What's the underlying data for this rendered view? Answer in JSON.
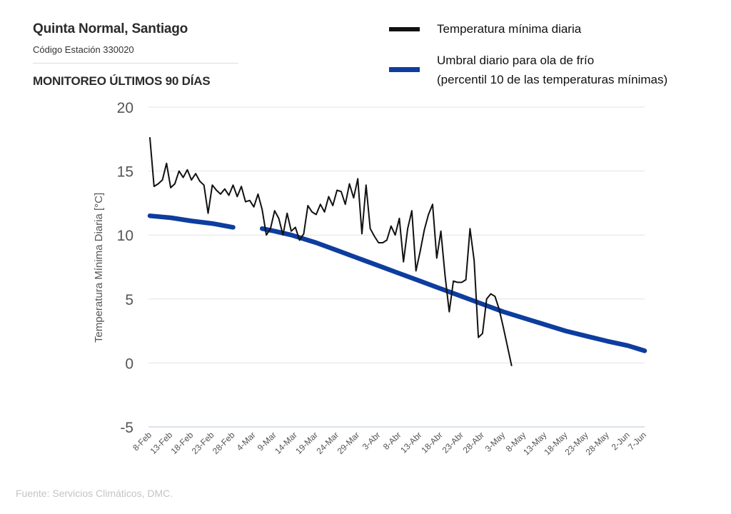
{
  "header": {
    "station_name": "Quinta Normal, Santiago",
    "station_code": "Código Estación 330020",
    "monitor_title": "MONITOREO ÚLTIMOS 90 DÍAS"
  },
  "legend": {
    "series1_label": "Temperatura mínima diaria",
    "series2_line1": "Umbral diario para ola de frío",
    "series2_line2": "(percentil 10 de las temperaturas mínimas)"
  },
  "source": "Fuente: Servicios Climáticos, DMC.",
  "colors": {
    "min_temp": "#111111",
    "threshold": "#0d3d9e",
    "grid": "#e3e3e3",
    "tick_text": "#555555"
  },
  "chart_data": {
    "type": "line",
    "title": "MONITOREO ÚLTIMOS 90 DÍAS",
    "xlabel": "",
    "ylabel": "Temperatura Mínima Diaria [°C]",
    "ylim": [
      -5,
      20
    ],
    "yticks": [
      20,
      15,
      10,
      5,
      0,
      -5
    ],
    "xlim": [
      0,
      119
    ],
    "xtick_days": [
      0,
      5,
      10,
      15,
      20,
      25,
      30,
      35,
      40,
      45,
      50,
      55,
      60,
      65,
      70,
      75,
      80,
      85,
      90,
      95,
      100,
      105,
      110,
      115,
      119
    ],
    "xtick_labels": [
      "8-Feb",
      "13-Feb",
      "18-Feb",
      "23-Feb",
      "28-Feb",
      "4-Mar",
      "9-Mar",
      "14-Mar",
      "19-Mar",
      "24-Mar",
      "29-Mar",
      "3-Abr",
      "8-Abr",
      "13-Abr",
      "18-Abr",
      "23-Abr",
      "28-Abr",
      "3-May",
      "8-May",
      "13-May",
      "18-May",
      "23-May",
      "28-May",
      "2-Jun",
      "7-Jun"
    ],
    "series": [
      {
        "name": "Temperatura mínima diaria",
        "x": [
          0,
          1,
          2,
          3,
          4,
          5,
          6,
          7,
          8,
          9,
          10,
          11,
          12,
          13,
          14,
          15,
          16,
          17,
          18,
          19,
          20,
          21,
          22,
          23,
          24,
          25,
          26,
          27,
          28,
          29,
          30,
          31,
          32,
          33,
          34,
          35,
          36,
          37,
          38,
          39,
          40,
          41,
          42,
          43,
          44,
          45,
          46,
          47,
          48,
          49,
          50,
          51,
          52,
          53,
          54,
          55,
          56,
          57,
          58,
          59,
          60,
          61,
          62,
          63,
          64,
          65,
          66,
          67,
          68,
          69,
          70,
          71,
          72,
          73,
          74,
          75,
          76,
          77,
          78,
          79,
          80,
          81,
          82,
          83,
          84,
          85,
          86,
          87,
          88,
          89,
          90
        ],
        "values": [
          17.6,
          13.8,
          14.0,
          14.3,
          15.6,
          13.7,
          14.0,
          15.0,
          14.5,
          15.1,
          14.3,
          14.8,
          14.2,
          13.9,
          11.7,
          13.9,
          13.5,
          13.2,
          13.6,
          13.1,
          13.9,
          13.0,
          13.8,
          12.6,
          12.7,
          12.2,
          13.2,
          12.0,
          10.0,
          10.5,
          11.9,
          11.3,
          10.0,
          11.7,
          10.3,
          10.6,
          9.6,
          10.1,
          12.3,
          11.8,
          11.6,
          12.4,
          11.8,
          13.0,
          12.3,
          13.5,
          13.4,
          12.4,
          14.0,
          12.9,
          14.4,
          10.1,
          13.9,
          10.5,
          9.9,
          9.4,
          9.4,
          9.6,
          10.7,
          10.0,
          11.3,
          7.9,
          10.5,
          11.9,
          7.2,
          8.7,
          10.4,
          11.6,
          12.4,
          8.2,
          10.3,
          6.8,
          4.0,
          6.4,
          6.3,
          6.3,
          6.5,
          10.5,
          8.0,
          2.0,
          2.3,
          5.0,
          5.4,
          5.2,
          4.2,
          2.8,
          1.3,
          -0.2,
          null,
          null,
          null
        ],
        "color": "#111111"
      },
      {
        "name": "Umbral diario para ola de frío (percentil 10 de las temperaturas mínimas)",
        "x": [
          0,
          5,
          10,
          15,
          20,
          26,
          27,
          30,
          34,
          40,
          45,
          50,
          55,
          60,
          65,
          70,
          75,
          80,
          85,
          90,
          95,
          100,
          105,
          110,
          115,
          119
        ],
        "values": [
          11.5,
          11.35,
          11.1,
          10.9,
          10.6,
          null,
          10.5,
          10.3,
          10.0,
          9.4,
          8.8,
          8.2,
          7.6,
          7.0,
          6.4,
          5.8,
          5.2,
          4.6,
          4.0,
          3.5,
          3.0,
          2.5,
          2.1,
          1.7,
          1.35,
          0.95
        ],
        "color": "#0d3d9e"
      }
    ],
    "legend_position": "top-right",
    "grid": "horizontal"
  }
}
